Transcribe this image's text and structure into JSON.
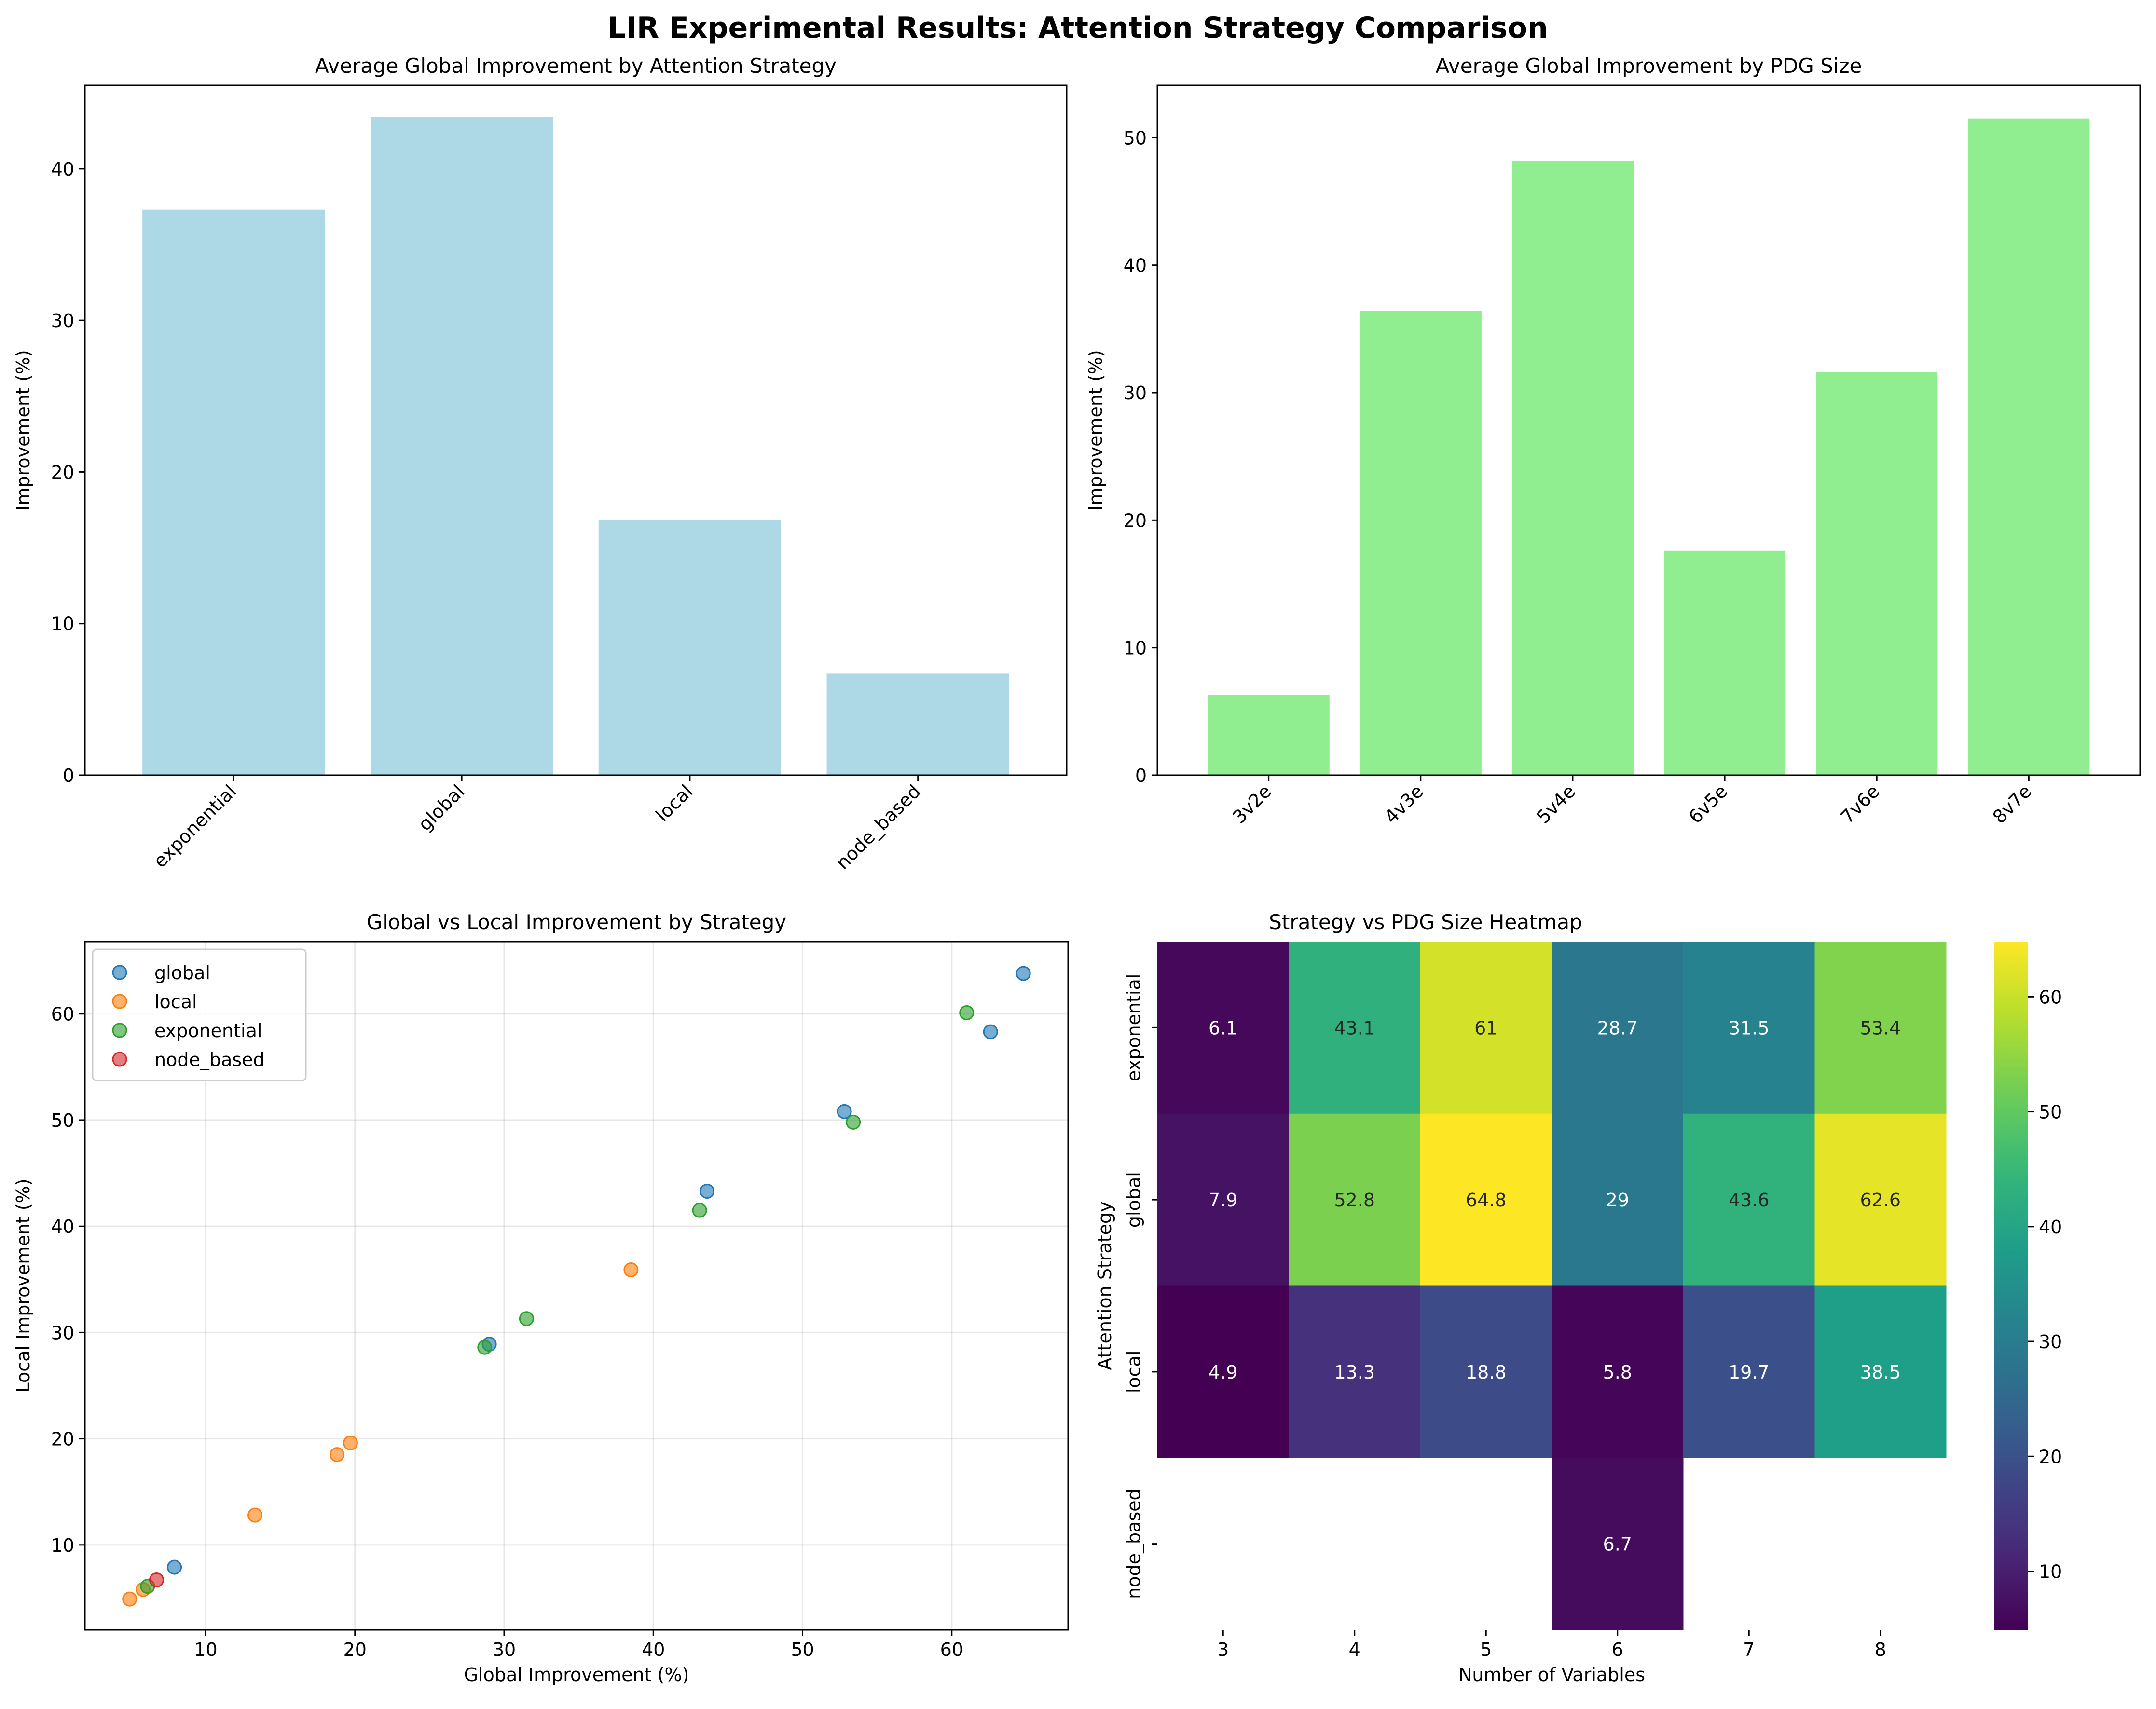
{
  "figure": {
    "suptitle": "LIR Experimental Results: Attention Strategy Comparison"
  },
  "chart_data": [
    {
      "type": "bar",
      "title": "Average Global Improvement by Attention Strategy",
      "xlabel": "",
      "ylabel": "Improvement (%)",
      "categories": [
        "exponential",
        "global",
        "local",
        "node_based"
      ],
      "values": [
        37.3,
        43.4,
        16.8,
        6.7
      ],
      "ylim": [
        0,
        45.5
      ],
      "yticks": [
        0,
        10,
        20,
        30,
        40
      ],
      "color": "#add8e6",
      "grid": false
    },
    {
      "type": "bar",
      "title": "Average Global Improvement by PDG Size",
      "xlabel": "",
      "ylabel": "Improvement (%)",
      "categories": [
        "3v2e",
        "4v3e",
        "5v4e",
        "6v5e",
        "7v6e",
        "8v7e"
      ],
      "values": [
        6.3,
        36.4,
        48.2,
        17.6,
        31.6,
        51.5
      ],
      "ylim": [
        0,
        54.1
      ],
      "yticks": [
        0,
        10,
        20,
        30,
        40,
        50
      ],
      "color": "#90ee90",
      "grid": false
    },
    {
      "type": "scatter",
      "title": "Global vs Local Improvement by Strategy",
      "xlabel": "Global Improvement (%)",
      "ylabel": "Local Improvement (%)",
      "xlim": [
        1.9,
        67.8
      ],
      "ylim": [
        2.0,
        66.8
      ],
      "xticks": [
        10,
        20,
        30,
        40,
        50,
        60
      ],
      "yticks": [
        10,
        20,
        30,
        40,
        50,
        60
      ],
      "grid": true,
      "legend": "upper-left",
      "series": [
        {
          "name": "global",
          "color": "#1f77b4",
          "points": [
            [
              7.9,
              7.9
            ],
            [
              29.0,
              28.9
            ],
            [
              43.6,
              43.3
            ],
            [
              52.8,
              50.8
            ],
            [
              62.6,
              58.3
            ],
            [
              64.8,
              63.8
            ]
          ]
        },
        {
          "name": "local",
          "color": "#ff7f0e",
          "points": [
            [
              4.9,
              4.9
            ],
            [
              5.8,
              5.8
            ],
            [
              13.3,
              12.8
            ],
            [
              18.8,
              18.5
            ],
            [
              19.7,
              19.6
            ],
            [
              38.5,
              35.9
            ]
          ]
        },
        {
          "name": "exponential",
          "color": "#2ca02c",
          "points": [
            [
              6.1,
              6.1
            ],
            [
              28.7,
              28.6
            ],
            [
              31.5,
              31.3
            ],
            [
              43.1,
              41.5
            ],
            [
              53.4,
              49.8
            ],
            [
              61.0,
              60.1
            ]
          ]
        },
        {
          "name": "node_based",
          "color": "#d62728",
          "points": [
            [
              6.7,
              6.7
            ]
          ]
        }
      ]
    },
    {
      "type": "heatmap",
      "title": "Strategy vs PDG Size Heatmap",
      "xlabel": "Number of Variables",
      "ylabel": "Attention Strategy",
      "x": [
        "3",
        "4",
        "5",
        "6",
        "7",
        "8"
      ],
      "y": [
        "exponential",
        "global",
        "local",
        "node_based"
      ],
      "values": [
        [
          6.1,
          43.1,
          61.0,
          28.7,
          31.5,
          53.4
        ],
        [
          7.9,
          52.8,
          64.8,
          29.0,
          43.6,
          62.6
        ],
        [
          4.9,
          13.3,
          18.8,
          5.8,
          19.7,
          38.5
        ],
        [
          null,
          null,
          null,
          6.7,
          null,
          null
        ]
      ],
      "vmin": 4.9,
      "vmax": 64.8,
      "colormap": "viridis",
      "colorbar_ticks": [
        10,
        20,
        30,
        40,
        50,
        60
      ]
    }
  ]
}
